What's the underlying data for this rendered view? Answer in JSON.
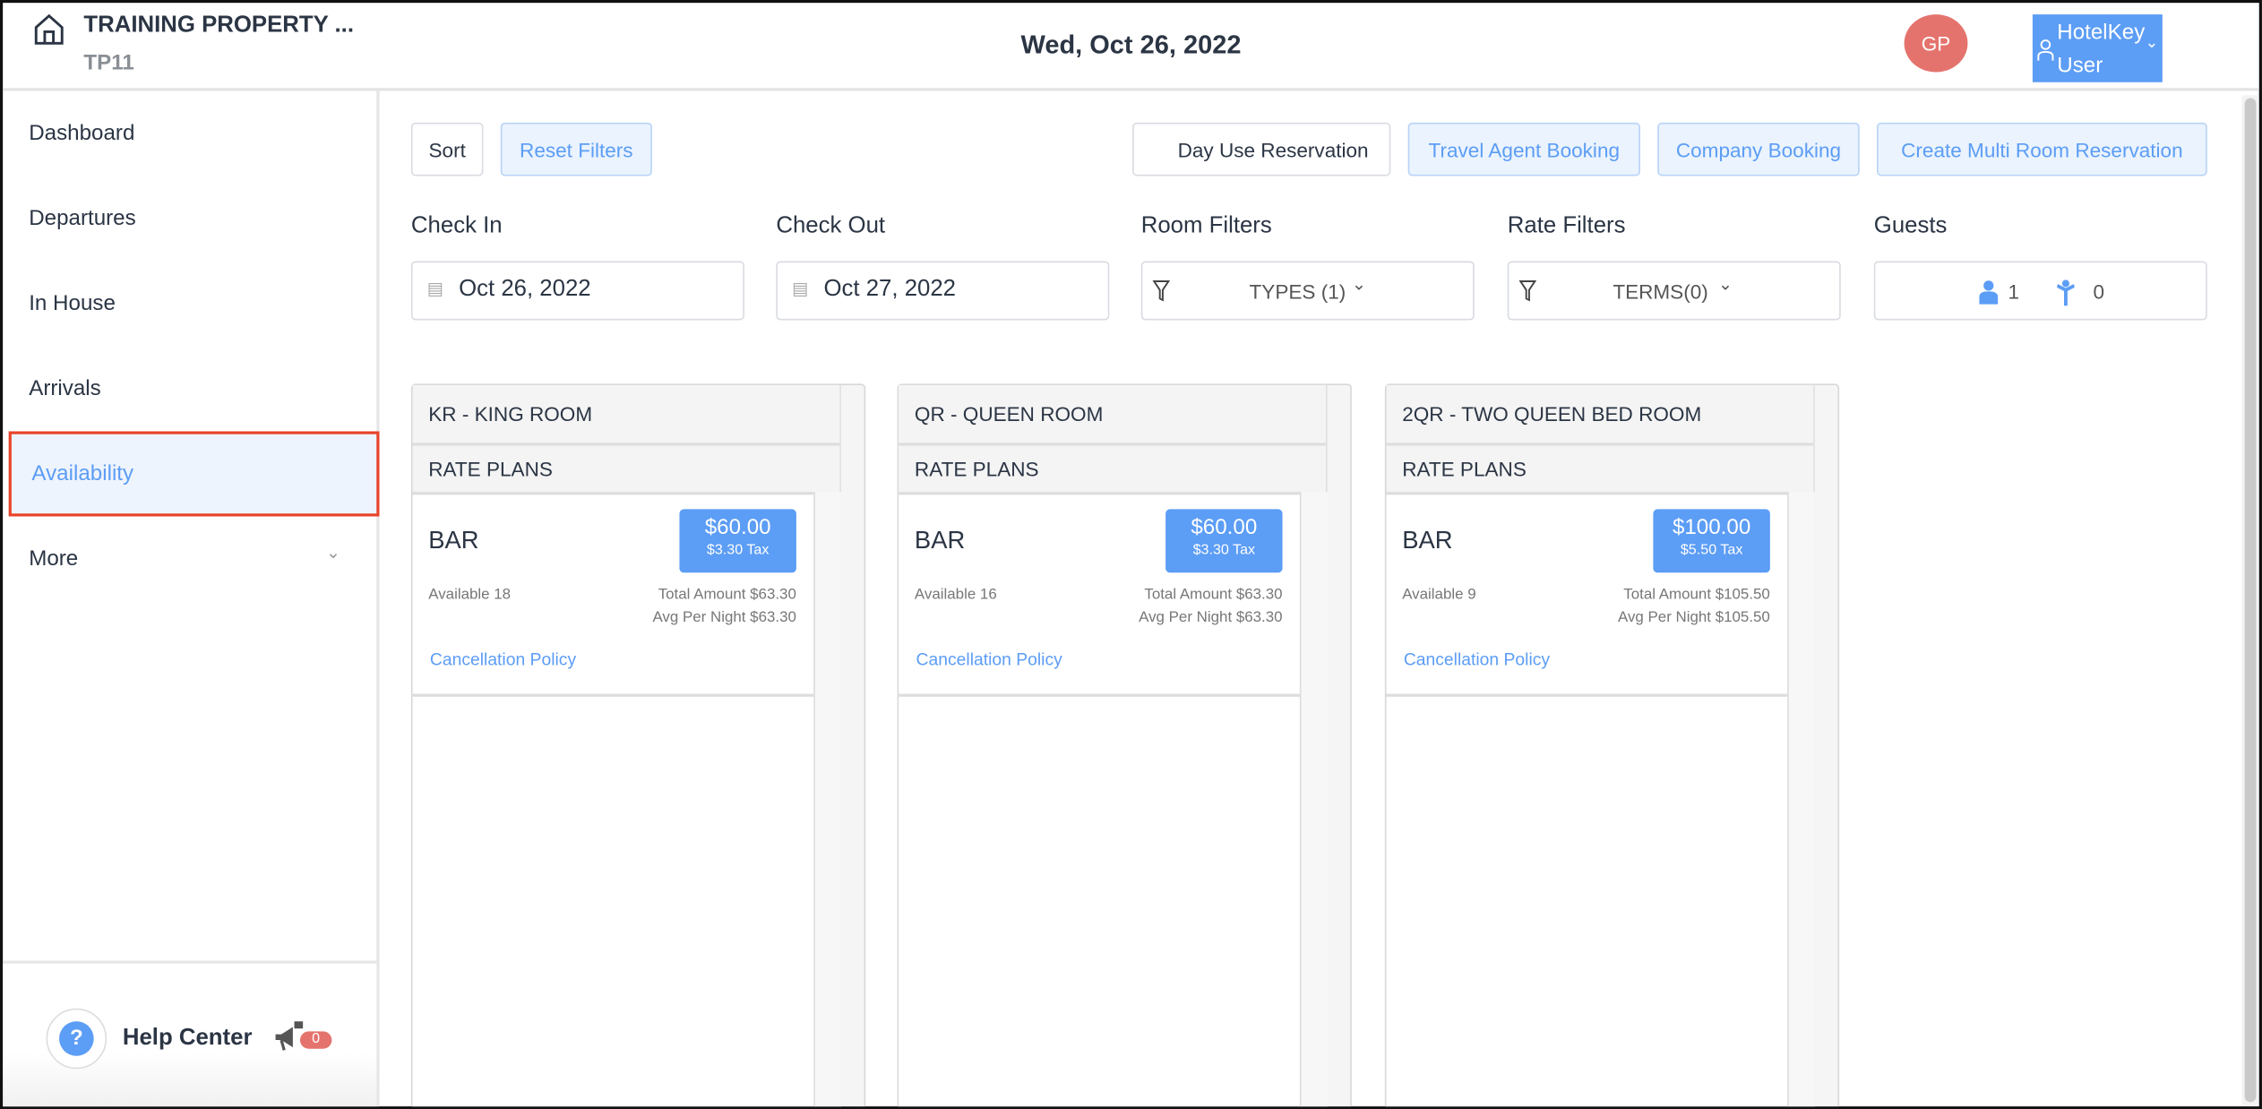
{
  "header": {
    "property_name": "TRAINING PROPERTY ...",
    "property_code": "TP11",
    "date": "Wed, Oct 26, 2022",
    "avatar_initials": "GP",
    "user_line1": "HotelKey",
    "user_line2": "User"
  },
  "sidebar": {
    "items": [
      {
        "label": "Dashboard"
      },
      {
        "label": "Departures"
      },
      {
        "label": "In House"
      },
      {
        "label": "Arrivals"
      },
      {
        "label": "Availability",
        "active": true
      },
      {
        "label": "More"
      }
    ],
    "help_label": "Help Center",
    "notification_count": "0"
  },
  "toolbar": {
    "sort": "Sort",
    "reset": "Reset Filters",
    "day_use": "Day Use Reservation",
    "travel_agent": "Travel Agent Booking",
    "company": "Company Booking",
    "multi_room": "Create Multi Room Reservation"
  },
  "filters": {
    "check_in_label": "Check In",
    "check_in": "Oct 26, 2022",
    "check_out_label": "Check Out",
    "check_out": "Oct 27, 2022",
    "room_label": "Room Filters",
    "room_value": "TYPES (1)",
    "rate_label": "Rate Filters",
    "rate_value": "TERMS(0)",
    "guests_label": "Guests",
    "adults": "1",
    "children": "0"
  },
  "rooms": [
    {
      "title": "KR - KING ROOM",
      "section": "RATE PLANS",
      "plan": "BAR",
      "price": "$60.00",
      "tax": "$3.30 Tax",
      "available": "Available 18",
      "total": "Total Amount $63.30",
      "avg": "Avg Per Night $63.30",
      "policy": "Cancellation Policy"
    },
    {
      "title": "QR - QUEEN ROOM",
      "section": "RATE PLANS",
      "plan": "BAR",
      "price": "$60.00",
      "tax": "$3.30 Tax",
      "available": "Available 16",
      "total": "Total Amount $63.30",
      "avg": "Avg Per Night $63.30",
      "policy": "Cancellation Policy"
    },
    {
      "title": "2QR - TWO QUEEN BED ROOM",
      "section": "RATE PLANS",
      "plan": "BAR",
      "price": "$100.00",
      "tax": "$5.50 Tax",
      "available": "Available 9",
      "total": "Total Amount $105.50",
      "avg": "Avg Per Night $105.50",
      "policy": "Cancellation Policy"
    }
  ],
  "colors": {
    "accent": "#5c9df5",
    "avatar": "#e5736d",
    "active_outline": "#e8442c"
  }
}
